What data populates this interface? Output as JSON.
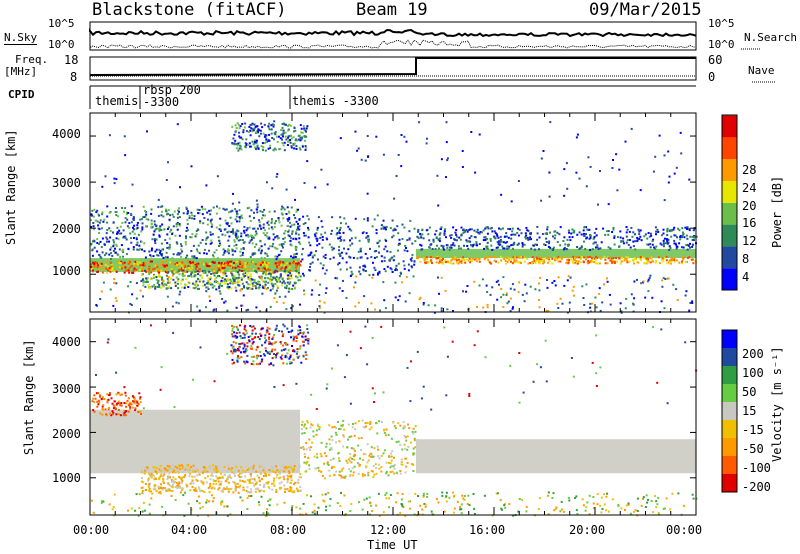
{
  "header": {
    "station": "Blackstone (fitACF)",
    "beam": "Beam 19",
    "date": "09/Mar/2015"
  },
  "top_panels": {
    "nsky_label": "N.Sky",
    "nsearch_label": "N.Search",
    "log_top": "10^5",
    "log_bottom": "10^0",
    "log_top_right": "10^5",
    "log_bottom_right": "10^0",
    "freq_label_1": "Freq.",
    "freq_label_2": "[MHz]",
    "freq_top": "18",
    "freq_bottom": "8",
    "nave_label": "Nave",
    "nave_top": "60",
    "nave_bottom": "0",
    "cpid_label": "CPID",
    "cpid_segments": [
      "themis",
      "rbsp 200",
      "-3300",
      "themis -3300"
    ]
  },
  "chart_data": [
    {
      "type": "heatmap",
      "title": "",
      "xlabel": "",
      "ylabel": "Slant Range [km]",
      "xlim": [
        "00:00",
        "24:00"
      ],
      "ylim": [
        180,
        4500
      ],
      "y_ticks": [
        "1000",
        "2000",
        "3000",
        "4000"
      ],
      "colorbar": {
        "label": "Power [dB]",
        "ticks": [
          "28",
          "24",
          "20",
          "16",
          "12",
          "8",
          "4"
        ],
        "colors": [
          "#0000ff",
          "#1f4aa0",
          "#2e8b57",
          "#6abf4b",
          "#e6e600",
          "#ff9900",
          "#ff4500",
          "#e00000"
        ]
      }
    },
    {
      "type": "heatmap",
      "title": "",
      "xlabel": "Time UT",
      "ylabel": "Slant Range [km]",
      "xlim": [
        "00:00",
        "24:00"
      ],
      "ylim": [
        180,
        4500
      ],
      "x_ticks": [
        "00:00",
        "04:00",
        "08:00",
        "12:00",
        "16:00",
        "20:00",
        "00:00"
      ],
      "y_ticks": [
        "1000",
        "2000",
        "3000",
        "4000"
      ],
      "colorbar": {
        "label": "Velocity [m s⁻¹]",
        "ticks": [
          "200",
          "100",
          "50",
          "15",
          "-15",
          "-50",
          "-100",
          "-200"
        ],
        "colors": [
          "#e00000",
          "#ff5a00",
          "#ff9900",
          "#f0c000",
          "#c8c8c0",
          "#66cc44",
          "#2e9e40",
          "#1f4aa0",
          "#0000ff"
        ]
      }
    }
  ]
}
